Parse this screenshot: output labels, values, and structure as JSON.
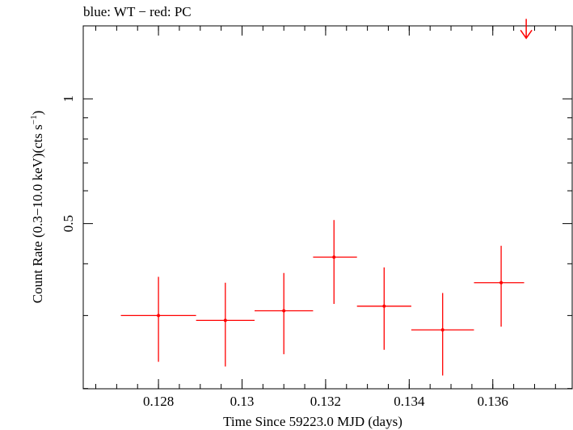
{
  "chart_data": {
    "type": "scatter",
    "title": "blue: WT − red: PC",
    "xlabel": "Time Since 59223.0 MJD (days)",
    "ylabel_main": "Count Rate (0.3−10.0 keV)(cts s",
    "ylabel_sup": "−1",
    "ylabel_close": ")",
    "xlim": [
      0.1262,
      0.1379
    ],
    "ylim": [
      0.1997,
      1.5
    ],
    "y_scale": "log",
    "x_ticks": [
      {
        "value": 0.128,
        "label": "0.128"
      },
      {
        "value": 0.13,
        "label": "0.13"
      },
      {
        "value": 0.132,
        "label": "0.132"
      },
      {
        "value": 0.134,
        "label": "0.134"
      },
      {
        "value": 0.136,
        "label": "0.136"
      }
    ],
    "y_ticks": [
      {
        "value": 0.5,
        "label": "0.5"
      },
      {
        "value": 1.0,
        "label": "1"
      }
    ],
    "series": [
      {
        "color": "#ff0000",
        "points": [
          {
            "x": 0.128,
            "xlo": 0.1271,
            "xhi": 0.1289,
            "y": 0.3,
            "ylo": 0.232,
            "yhi": 0.372
          },
          {
            "x": 0.1296,
            "xlo": 0.1289,
            "xhi": 0.1303,
            "y": 0.292,
            "ylo": 0.226,
            "yhi": 0.36
          },
          {
            "x": 0.131,
            "xlo": 0.1303,
            "xhi": 0.1317,
            "y": 0.308,
            "ylo": 0.242,
            "yhi": 0.38
          },
          {
            "x": 0.1322,
            "xlo": 0.1317,
            "xhi": 0.13275,
            "y": 0.415,
            "ylo": 0.32,
            "yhi": 0.51
          },
          {
            "x": 0.1334,
            "xlo": 0.13275,
            "xhi": 0.13405,
            "y": 0.316,
            "ylo": 0.248,
            "yhi": 0.392
          },
          {
            "x": 0.1348,
            "xlo": 0.13405,
            "xhi": 0.13555,
            "y": 0.277,
            "ylo": 0.215,
            "yhi": 0.34
          },
          {
            "x": 0.1362,
            "xlo": 0.13555,
            "xhi": 0.13675,
            "y": 0.36,
            "ylo": 0.282,
            "yhi": 0.442
          }
        ],
        "upper_limits": [
          {
            "x": 0.1368,
            "y": 1.4
          }
        ]
      }
    ]
  }
}
